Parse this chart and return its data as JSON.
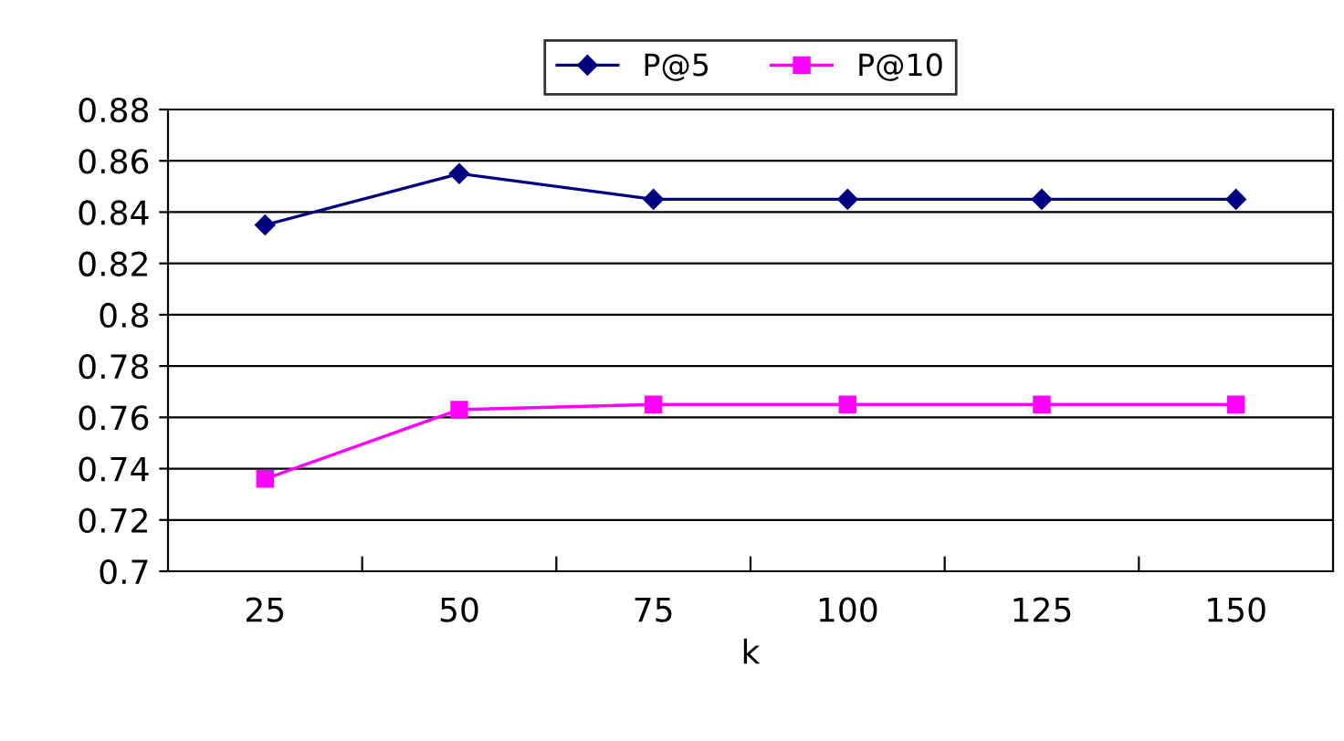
{
  "chart_data": {
    "type": "line",
    "xlabel": "k",
    "categories": [
      "25",
      "50",
      "75",
      "100",
      "125",
      "150"
    ],
    "series": [
      {
        "name": "P@5",
        "color": "#000080",
        "marker": "diamond",
        "values": [
          0.835,
          0.855,
          0.845,
          0.845,
          0.845,
          0.845
        ]
      },
      {
        "name": "P@10",
        "color": "#ff00ff",
        "marker": "square",
        "values": [
          0.736,
          0.763,
          0.765,
          0.765,
          0.765,
          0.765
        ]
      }
    ],
    "ylim": [
      0.7,
      0.88
    ],
    "yticks": [
      {
        "value": 0.7,
        "label": "0.7"
      },
      {
        "value": 0.72,
        "label": "0.72"
      },
      {
        "value": 0.74,
        "label": "0.74"
      },
      {
        "value": 0.76,
        "label": "0.76"
      },
      {
        "value": 0.78,
        "label": "0.78"
      },
      {
        "value": 0.8,
        "label": "0.8"
      },
      {
        "value": 0.82,
        "label": "0.82"
      },
      {
        "value": 0.84,
        "label": "0.84"
      },
      {
        "value": 0.86,
        "label": "0.86"
      },
      {
        "value": 0.88,
        "label": "0.88"
      }
    ],
    "grid": "y",
    "legend": "top",
    "line_style": "solid"
  }
}
